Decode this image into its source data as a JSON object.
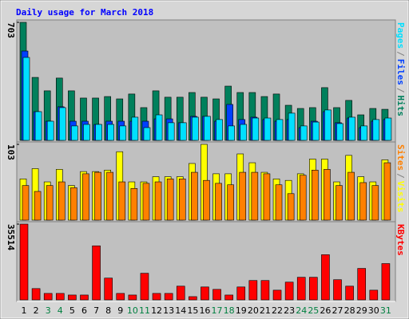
{
  "chart_data": [
    {
      "type": "bar",
      "title": "Daily usage for March 2018",
      "title_color": "#0000ff",
      "ylim": [
        0,
        703
      ],
      "yticks": [
        703
      ],
      "legend_separator": "/",
      "series": [
        {
          "name": "Hits",
          "color": "#00805c",
          "values": [
            703,
            375,
            295,
            371,
            295,
            252,
            252,
            261,
            247,
            276,
            195,
            295,
            257,
            257,
            285,
            257,
            247,
            323,
            285,
            285,
            261,
            276,
            209,
            190,
            195,
            314,
            195,
            238,
            152,
            190,
            185
          ]
        },
        {
          "name": "Files",
          "color": "#0040ff",
          "values": [
            532,
            171,
            114,
            200,
            114,
            114,
            95,
            114,
            114,
            114,
            114,
            128,
            128,
            105,
            143,
            143,
            114,
            214,
            124,
            138,
            124,
            114,
            124,
            76,
            114,
            171,
            105,
            133,
            76,
            114,
            124
          ]
        },
        {
          "name": "Pages",
          "color": "#00e0ff",
          "values": [
            494,
            171,
            114,
            195,
            86,
            95,
            95,
            95,
            86,
            138,
            76,
            152,
            105,
            105,
            138,
            143,
            124,
            86,
            95,
            133,
            133,
            124,
            162,
            86,
            109,
            181,
            100,
            138,
            86,
            124,
            133
          ]
        }
      ]
    },
    {
      "type": "bar",
      "ylim": [
        0,
        103
      ],
      "yticks": [
        103
      ],
      "legend_separator": "/",
      "series": [
        {
          "name": "Visits",
          "color": "#ffff00",
          "values": [
            56,
            70,
            52,
            69,
            47,
            66,
            66,
            68,
            93,
            52,
            52,
            59,
            59,
            59,
            77,
            103,
            63,
            63,
            90,
            78,
            65,
            56,
            54,
            63,
            83,
            83,
            52,
            88,
            59,
            52,
            82
          ]
        },
        {
          "name": "Sites",
          "color": "#ff8000",
          "values": [
            47,
            39,
            47,
            52,
            44,
            63,
            65,
            65,
            52,
            43,
            50,
            52,
            56,
            56,
            65,
            54,
            50,
            48,
            65,
            65,
            63,
            48,
            36,
            61,
            68,
            69,
            47,
            65,
            51,
            47,
            78
          ]
        }
      ]
    },
    {
      "type": "bar",
      "ylim": [
        0,
        35514
      ],
      "yticks": [
        35514
      ],
      "categories": [
        "1",
        "2",
        "3",
        "4",
        "5",
        "6",
        "7",
        "8",
        "9",
        "10",
        "11",
        "12",
        "13",
        "14",
        "15",
        "16",
        "17",
        "18",
        "19",
        "20",
        "21",
        "22",
        "23",
        "24",
        "25",
        "26",
        "27",
        "28",
        "29",
        "30",
        "31"
      ],
      "category_color": "#000000",
      "highlight": {
        "color": "#008040",
        "categories": [
          2,
          3,
          9,
          10,
          16,
          17,
          23,
          24,
          30
        ]
      },
      "series": [
        {
          "name": "KBytes",
          "color": "#ff0000",
          "values": [
            35514,
            5292,
            3024,
            3024,
            2268,
            2268,
            25326,
            10206,
            3024,
            2268,
            12474,
            3024,
            3024,
            6426,
            1512,
            6048,
            4914,
            2268,
            6048,
            9072,
            9072,
            4536,
            8316,
            10584,
            10584,
            21168,
            9450,
            6426,
            14742,
            4536,
            17010
          ]
        }
      ]
    }
  ]
}
